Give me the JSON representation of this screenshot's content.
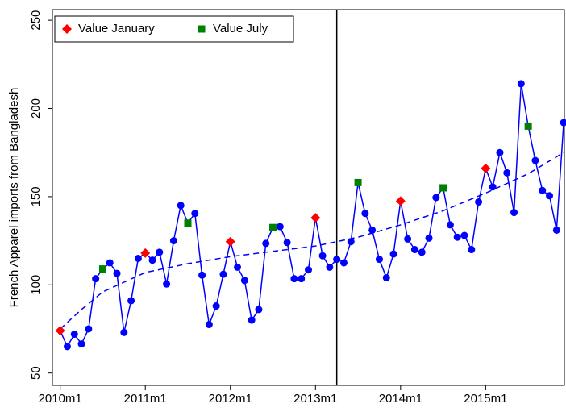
{
  "chart_data": {
    "type": "line",
    "y_label": "French Apparel imports from Bangladesh",
    "x": [
      600,
      601,
      602,
      603,
      604,
      605,
      606,
      607,
      608,
      609,
      610,
      611,
      612,
      613,
      614,
      615,
      616,
      617,
      618,
      619,
      620,
      621,
      622,
      623,
      624,
      625,
      626,
      627,
      628,
      629,
      630,
      631,
      632,
      633,
      634,
      635,
      636,
      637,
      638,
      639,
      640,
      641,
      642,
      643,
      644,
      645,
      646,
      647,
      648,
      649,
      650,
      651,
      652,
      653,
      654,
      655,
      656,
      657,
      658,
      659,
      660,
      661,
      662,
      663,
      664,
      665,
      666,
      667,
      668,
      669,
      670,
      671
    ],
    "series": [
      {
        "color": "#0000ff",
        "values": [
          74,
          65,
          72,
          66.5,
          75,
          103.5,
          109,
          112.5,
          106.5,
          73,
          91,
          115,
          118,
          114,
          118.5,
          100.5,
          125,
          145,
          135,
          140.5,
          105.5,
          77.5,
          88,
          106,
          124.5,
          110,
          102.5,
          80,
          86,
          123.5,
          132.5,
          133,
          124,
          103.5,
          103.5,
          108.5,
          138,
          116.5,
          110,
          114.5,
          112.5,
          124.5,
          158,
          140.5,
          131,
          114.5,
          104,
          117.5,
          147.5,
          126,
          120,
          118.5,
          126.5,
          149.5,
          155,
          134,
          127,
          128,
          120,
          147,
          166,
          155.5,
          175,
          163.5,
          141,
          214,
          190,
          170.5,
          153.5,
          150.5,
          131,
          192
        ]
      }
    ],
    "highlights": [
      {
        "name": "Value January",
        "color": "#ff0000",
        "marker": "diamond",
        "x_mod_12": 0
      },
      {
        "name": "Value July",
        "color": "#008000",
        "marker": "square",
        "x_mod_12": 6
      }
    ],
    "trend": {
      "color": "#0000ff",
      "x": [
        600,
        603,
        606,
        612,
        618,
        624,
        630,
        636,
        642,
        648,
        654,
        660,
        666,
        671
      ],
      "values": [
        75,
        86,
        96,
        107,
        112,
        116,
        119,
        122,
        127,
        134,
        142,
        152,
        163,
        175
      ]
    },
    "vline": 639,
    "xlim": [
      598.9,
      671.1
    ],
    "xticks": [
      {
        "value": 600,
        "label": "2010m1"
      },
      {
        "value": 612,
        "label": "2011m1"
      },
      {
        "value": 624,
        "label": "2012m1"
      },
      {
        "value": 636,
        "label": "2013m1"
      },
      {
        "value": 648,
        "label": "2014m1"
      },
      {
        "value": 660,
        "label": "2015m1"
      }
    ],
    "ylim": [
      43,
      256
    ],
    "yticks": [
      50,
      100,
      150,
      200,
      250
    ]
  }
}
